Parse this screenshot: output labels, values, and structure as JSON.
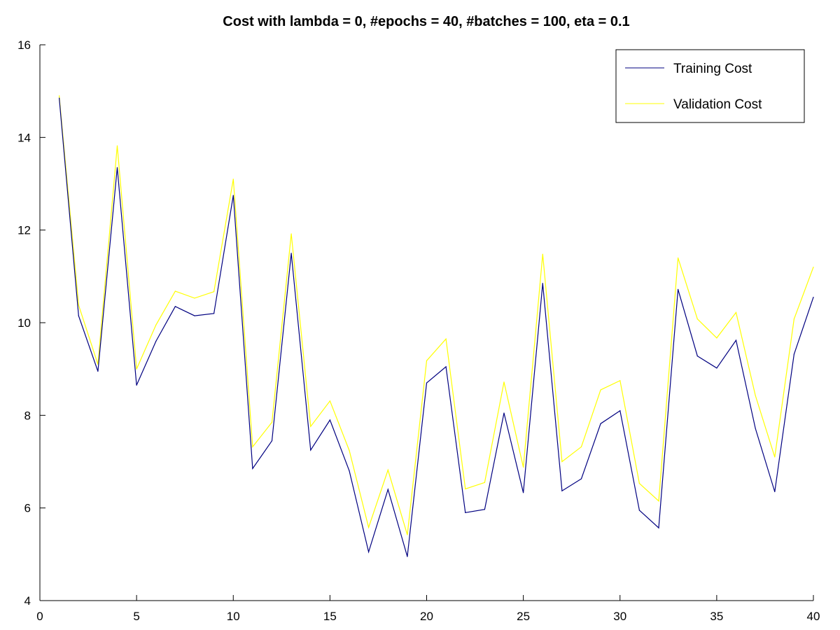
{
  "chart_data": {
    "type": "line",
    "title": "Cost with lambda = 0, #epochs = 40, #batches = 100, eta = 0.1",
    "xlabel": "",
    "ylabel": "",
    "xlim": [
      0,
      40
    ],
    "ylim": [
      4,
      16
    ],
    "xticks": [
      0,
      5,
      10,
      15,
      20,
      25,
      30,
      35,
      40
    ],
    "yticks": [
      4,
      6,
      8,
      10,
      12,
      14,
      16
    ],
    "grid": false,
    "legend_position": "top-right",
    "x": [
      1,
      2,
      3,
      4,
      5,
      6,
      7,
      8,
      9,
      10,
      11,
      12,
      13,
      14,
      15,
      16,
      17,
      18,
      19,
      20,
      21,
      22,
      23,
      24,
      25,
      26,
      27,
      28,
      29,
      30,
      31,
      32,
      33,
      34,
      35,
      36,
      37,
      38,
      39,
      40
    ],
    "series": [
      {
        "name": "Training Cost",
        "color": "#000080",
        "values": [
          14.85,
          10.15,
          8.95,
          13.35,
          8.65,
          9.6,
          10.35,
          10.15,
          10.2,
          12.75,
          6.85,
          7.45,
          11.5,
          7.25,
          7.9,
          6.8,
          5.05,
          6.4,
          4.95,
          8.7,
          9.05,
          5.9,
          5.97,
          8.05,
          6.33,
          10.85,
          6.37,
          6.63,
          7.82,
          8.1,
          5.95,
          5.57,
          10.72,
          9.28,
          9.02,
          9.62,
          7.72,
          6.35,
          9.32,
          10.55
        ]
      },
      {
        "name": "Validation Cost",
        "color": "#ffff00",
        "values": [
          14.9,
          10.38,
          9.1,
          13.82,
          9.0,
          9.95,
          10.68,
          10.53,
          10.67,
          13.1,
          7.32,
          7.85,
          11.92,
          7.76,
          8.31,
          7.24,
          5.58,
          6.82,
          5.42,
          9.18,
          9.65,
          6.41,
          6.55,
          8.72,
          6.88,
          11.48,
          7.0,
          7.32,
          8.55,
          8.75,
          6.53,
          6.15,
          11.4,
          10.08,
          9.67,
          10.22,
          8.43,
          7.1,
          10.08,
          11.2
        ]
      }
    ]
  }
}
